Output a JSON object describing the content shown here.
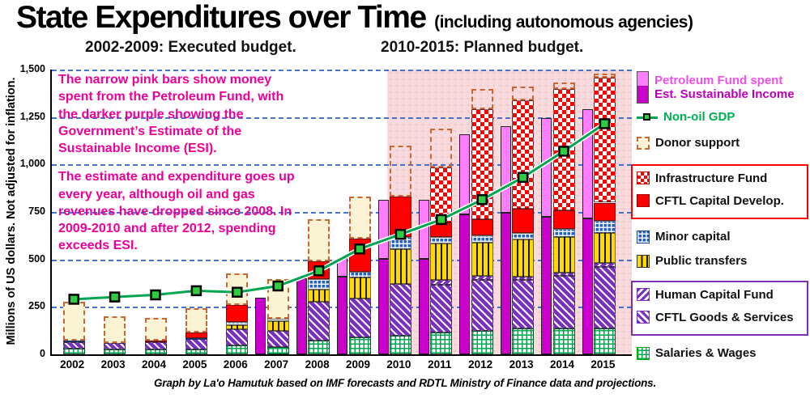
{
  "header": {
    "title": "State Expenditures over Time",
    "title_suffix": "(including autonomous agencies)",
    "subtitle_left": "2002-2009: Executed budget.",
    "subtitle_right": "2010-2015: Planned budget."
  },
  "annotation": {
    "para1": "The narrow pink bars show money spent from the Petroleum Fund, with the darker purple showing the Government’s Estimate of the Sustainable Income (ESI).",
    "para2": "The estimate and expenditure goes up every year, although oil and gas revenues have dropped since 2008. In 2009-2010 and after 2012, spending exceeds ESI."
  },
  "y_axis": {
    "title": "Millions of US dollars. Not adjusted for inflation.",
    "ticks": [
      {
        "value": 1500,
        "label": "1,500"
      },
      {
        "value": 1250,
        "label": "1,250"
      },
      {
        "value": 1000,
        "label": "1,000"
      },
      {
        "value": 750,
        "label": "750"
      },
      {
        "value": 500,
        "label": "500"
      },
      {
        "value": 250,
        "label": "250"
      },
      {
        "value": 0,
        "label": "0"
      }
    ]
  },
  "caption": "Graph by La'o Hamutuk based on IMF forecasts and RDTL Ministry of Finance data and projections.",
  "legend": {
    "items": [
      {
        "id": "petroleum",
        "swatch": "petro",
        "group": null,
        "lines": [
          {
            "text": "Petroleum Fund spent",
            "color": "#F050E8"
          },
          {
            "text": "Est. Sustainable Income",
            "color": "#BB00BB"
          }
        ]
      },
      {
        "id": "gdp",
        "swatch": "gdpline",
        "group": null,
        "lines": [
          {
            "text": "Non-oil GDP",
            "color": "#00B050"
          }
        ]
      },
      {
        "id": "donor",
        "swatch": "donor",
        "group": null,
        "lines": [
          {
            "text": "Donor support",
            "color": "#111111"
          }
        ]
      },
      {
        "id": "infrastructure",
        "swatch": "checker",
        "group": "red",
        "lines": [
          {
            "text": "Infrastructure Fund",
            "color": "#111111"
          }
        ]
      },
      {
        "id": "capital",
        "swatch": "red",
        "group": "red",
        "lines": [
          {
            "text": "CFTL Capital Develop.",
            "color": "#111111"
          }
        ]
      },
      {
        "id": "minor",
        "swatch": "bluecheck",
        "group": null,
        "lines": [
          {
            "text": "Minor capital",
            "color": "#111111"
          }
        ]
      },
      {
        "id": "transfers",
        "swatch": "yellowstripe",
        "group": null,
        "lines": [
          {
            "text": "Public transfers",
            "color": "#111111"
          }
        ]
      },
      {
        "id": "hcf",
        "swatch": "hcfhatch",
        "group": "purple",
        "lines": [
          {
            "text": "Human Capital Fund",
            "color": "#111111"
          }
        ]
      },
      {
        "id": "gs",
        "swatch": "gshatch",
        "group": "purple",
        "lines": [
          {
            "text": "CFTL Goods & Services",
            "color": "#111111"
          }
        ]
      },
      {
        "id": "salaries",
        "swatch": "greengrid",
        "group": null,
        "lines": [
          {
            "text": "Salaries & Wages",
            "color": "#111111"
          }
        ]
      }
    ]
  },
  "chart_data": {
    "type": "bar",
    "subtype": "stacked-bars-with-line-overlay",
    "unit": "millions of US dollars",
    "ylim": [
      0,
      1500
    ],
    "grid_interval": 250,
    "categories": [
      2002,
      2003,
      2004,
      2005,
      2006,
      2007,
      2008,
      2009,
      2010,
      2011,
      2012,
      2013,
      2014,
      2015
    ],
    "executed_years": "2002-2009",
    "planned_years": "2010-2015",
    "planned_region_start_year": 2010,
    "stack_series": [
      {
        "key": "salaries",
        "name": "Salaries & Wages",
        "values": [
          30,
          25,
          25,
          26,
          47,
          39,
          73,
          90,
          99,
          116,
          125,
          137,
          137,
          137
        ]
      },
      {
        "key": "cftl_gs",
        "name": "CFTL Goods & Services",
        "values": [
          35,
          35,
          38,
          56,
          86,
          86,
          202,
          206,
          270,
          250,
          266,
          254,
          275,
          323
        ]
      },
      {
        "key": "hcf",
        "name": "Human Capital Fund",
        "values": [
          0,
          0,
          0,
          0,
          0,
          0,
          0,
          0,
          0,
          25,
          21,
          20,
          20,
          20
        ]
      },
      {
        "key": "transfers",
        "name": "Public transfers",
        "values": [
          0,
          0,
          0,
          0,
          22,
          51,
          64,
          108,
          185,
          193,
          176,
          195,
          187,
          160
        ]
      },
      {
        "key": "minor",
        "name": "Minor capital",
        "values": [
          8,
          0,
          0,
          5,
          17,
          13,
          56,
          30,
          65,
          35,
          39,
          34,
          43,
          65
        ]
      },
      {
        "key": "capital",
        "name": "CFTL Capital Develop.",
        "values": [
          0,
          0,
          9,
          30,
          90,
          0,
          95,
          176,
          214,
          77,
          86,
          129,
          98,
          94
        ]
      },
      {
        "key": "infrastructure",
        "name": "Infrastructure Fund",
        "values": [
          0,
          0,
          0,
          0,
          0,
          0,
          0,
          0,
          0,
          288,
          580,
          571,
          636,
          657
        ]
      }
    ],
    "donor_support": {
      "name": "Donor support",
      "values": [
        206,
        140,
        120,
        128,
        163,
        206,
        223,
        223,
        267,
        206,
        103,
        70,
        34,
        24
      ]
    },
    "petroleum": {
      "esi_name": "Est. Sustainable Income",
      "spent_name": "Petroleum Fund spent",
      "esi": [
        null,
        null,
        null,
        null,
        300,
        400,
        410,
        502,
        502,
        739,
        747,
        726,
        717,
        null
      ],
      "spent": [
        null,
        null,
        null,
        null,
        null,
        null,
        508,
        812,
        812,
        1160,
        1203,
        1245,
        1293,
        null
      ]
    },
    "gdp_line": {
      "name": "Non-oil GDP",
      "values": [
        290,
        302,
        313,
        335,
        327,
        360,
        440,
        555,
        632,
        710,
        815,
        932,
        1070,
        1215
      ]
    }
  },
  "colors": {
    "esi_bar": "#CC00CC",
    "pf_spent_bar": "#FF7DFF",
    "gdp_line": "#00A550",
    "gdp_marker": "#2ECC40",
    "capital_red": "#FF0000",
    "transfers_yellow": "#FFD900",
    "minor_blue": "#2060C8",
    "purple_hatch": "#7B2FBE",
    "salaries_green": "#00A550",
    "donor_fill": "#FAF3D4",
    "donor_border": "#CC6633",
    "planned_bg": "#F8D9DC",
    "gridline": "#3366CC",
    "annotation_text": "#EC0099"
  }
}
